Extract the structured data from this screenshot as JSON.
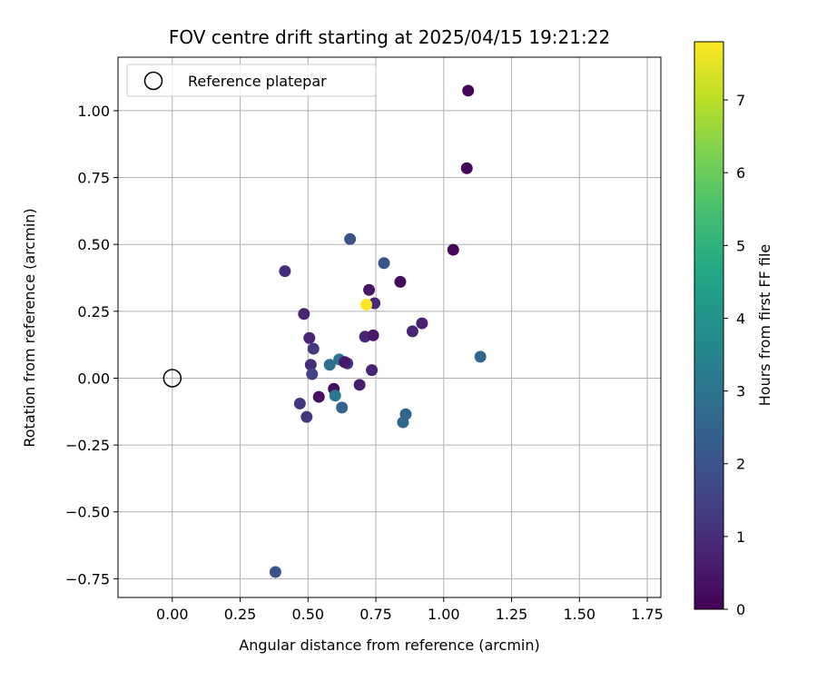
{
  "chart_data": {
    "type": "scatter",
    "title": "FOV centre drift starting at 2025/04/15 19:21:22",
    "xlabel": "Angular distance from reference (arcmin)",
    "ylabel": "Rotation from reference (arcmin)",
    "xlim": [
      -0.2,
      1.8
    ],
    "ylim": [
      -0.82,
      1.2
    ],
    "xticks": [
      0.0,
      0.25,
      0.5,
      0.75,
      1.0,
      1.25,
      1.5,
      1.75
    ],
    "xtick_labels": [
      "0.00",
      "0.25",
      "0.50",
      "0.75",
      "1.00",
      "1.25",
      "1.50",
      "1.75"
    ],
    "yticks": [
      -0.75,
      -0.5,
      -0.25,
      0.0,
      0.25,
      0.5,
      0.75,
      1.0
    ],
    "ytick_labels": [
      "−0.75",
      "−0.50",
      "−0.25",
      "0.00",
      "0.25",
      "0.50",
      "0.75",
      "1.00"
    ],
    "grid": true,
    "legend": {
      "placement": "upper-left",
      "entries": [
        {
          "label": "Reference platepar",
          "marker": "hollow-circle",
          "x": 0.0,
          "y": 0.0
        }
      ]
    },
    "colorbar": {
      "label": "Hours from first FF file",
      "colormap": "viridis",
      "range": [
        0,
        7.8
      ],
      "ticks": [
        0,
        1,
        2,
        3,
        4,
        5,
        6,
        7
      ],
      "tick_labels": [
        "0",
        "1",
        "2",
        "3",
        "4",
        "5",
        "6",
        "7"
      ]
    },
    "points": [
      {
        "x": 1.09,
        "y": 1.075,
        "c": 0.1
      },
      {
        "x": 1.085,
        "y": 0.785,
        "c": 0.1
      },
      {
        "x": 1.035,
        "y": 0.48,
        "c": 0.15
      },
      {
        "x": 0.655,
        "y": 0.52,
        "c": 2.0
      },
      {
        "x": 0.78,
        "y": 0.43,
        "c": 2.0
      },
      {
        "x": 0.415,
        "y": 0.4,
        "c": 1.0
      },
      {
        "x": 0.84,
        "y": 0.36,
        "c": 0.2
      },
      {
        "x": 0.725,
        "y": 0.33,
        "c": 0.5
      },
      {
        "x": 0.745,
        "y": 0.28,
        "c": 0.9
      },
      {
        "x": 0.715,
        "y": 0.275,
        "c": 7.8
      },
      {
        "x": 0.485,
        "y": 0.24,
        "c": 0.8
      },
      {
        "x": 0.92,
        "y": 0.205,
        "c": 0.7
      },
      {
        "x": 0.885,
        "y": 0.175,
        "c": 0.8
      },
      {
        "x": 0.71,
        "y": 0.155,
        "c": 0.8
      },
      {
        "x": 0.74,
        "y": 0.16,
        "c": 0.5
      },
      {
        "x": 0.505,
        "y": 0.15,
        "c": 0.8
      },
      {
        "x": 0.52,
        "y": 0.11,
        "c": 1.3
      },
      {
        "x": 1.135,
        "y": 0.08,
        "c": 2.6
      },
      {
        "x": 0.615,
        "y": 0.07,
        "c": 3.0
      },
      {
        "x": 0.58,
        "y": 0.05,
        "c": 2.8
      },
      {
        "x": 0.51,
        "y": 0.05,
        "c": 1.0
      },
      {
        "x": 0.645,
        "y": 0.055,
        "c": 1.3
      },
      {
        "x": 0.635,
        "y": 0.06,
        "c": 0.5
      },
      {
        "x": 0.735,
        "y": 0.03,
        "c": 0.8
      },
      {
        "x": 0.515,
        "y": 0.015,
        "c": 1.5
      },
      {
        "x": 0.69,
        "y": -0.025,
        "c": 0.6
      },
      {
        "x": 0.595,
        "y": -0.04,
        "c": 0.3
      },
      {
        "x": 0.6,
        "y": -0.065,
        "c": 3.1
      },
      {
        "x": 0.54,
        "y": -0.07,
        "c": 0.3
      },
      {
        "x": 0.47,
        "y": -0.095,
        "c": 1.2
      },
      {
        "x": 0.625,
        "y": -0.11,
        "c": 2.5
      },
      {
        "x": 0.86,
        "y": -0.135,
        "c": 2.5
      },
      {
        "x": 0.495,
        "y": -0.145,
        "c": 1.2
      },
      {
        "x": 0.85,
        "y": -0.165,
        "c": 2.6
      },
      {
        "x": 0.38,
        "y": -0.725,
        "c": 2.0
      }
    ]
  }
}
